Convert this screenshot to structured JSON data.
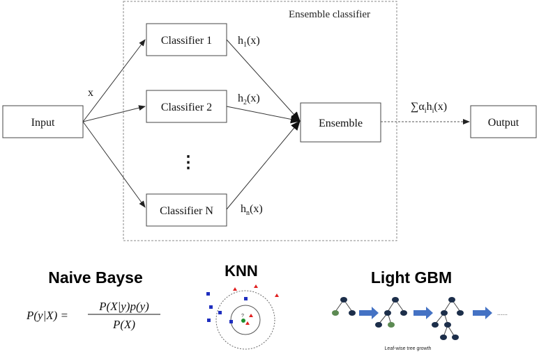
{
  "diagram": {
    "ensemble_label": "Ensemble classifier",
    "input_label": "Input",
    "x_label": "x",
    "classifiers": [
      {
        "label": "Classifier 1",
        "output": "h",
        "sub": "1",
        "arg": "(x)"
      },
      {
        "label": "Classifier 2",
        "output": "h",
        "sub": "2",
        "arg": "(x)"
      },
      {
        "label": "Classifier N",
        "output": "h",
        "sub": "n",
        "arg": "(x)"
      }
    ],
    "ellipsis": "⋮",
    "ensemble_box": "Ensemble",
    "sum_label": {
      "sigma": "∑",
      "alpha": "α",
      "alpha_sub": "i",
      "h": "h",
      "h_sub": "i",
      "arg": "(x)"
    },
    "output_label": "Output"
  },
  "methods": {
    "naive_bayes": {
      "title": "Naive Bayse",
      "lhs": "P(y|X) =",
      "numerator": "P(X|y)p(y)",
      "denominator": "P(X)"
    },
    "knn": {
      "title": "KNN",
      "query_mark": "?"
    },
    "lightgbm": {
      "title": "Light GBM",
      "ellipsis": "......",
      "caption": "Leaf-wise tree growth"
    }
  },
  "colors": {
    "line": "#3a3a3a",
    "dashed_border": "#8a8a8a",
    "knn_square": "#1f2fbf",
    "knn_triangle": "#e02020",
    "knn_center": "#1f8f2f",
    "tree_node": "#1c2e4a",
    "tree_leaf_highlight": "#5c8a52",
    "arrow_fill": "#4472c4"
  }
}
